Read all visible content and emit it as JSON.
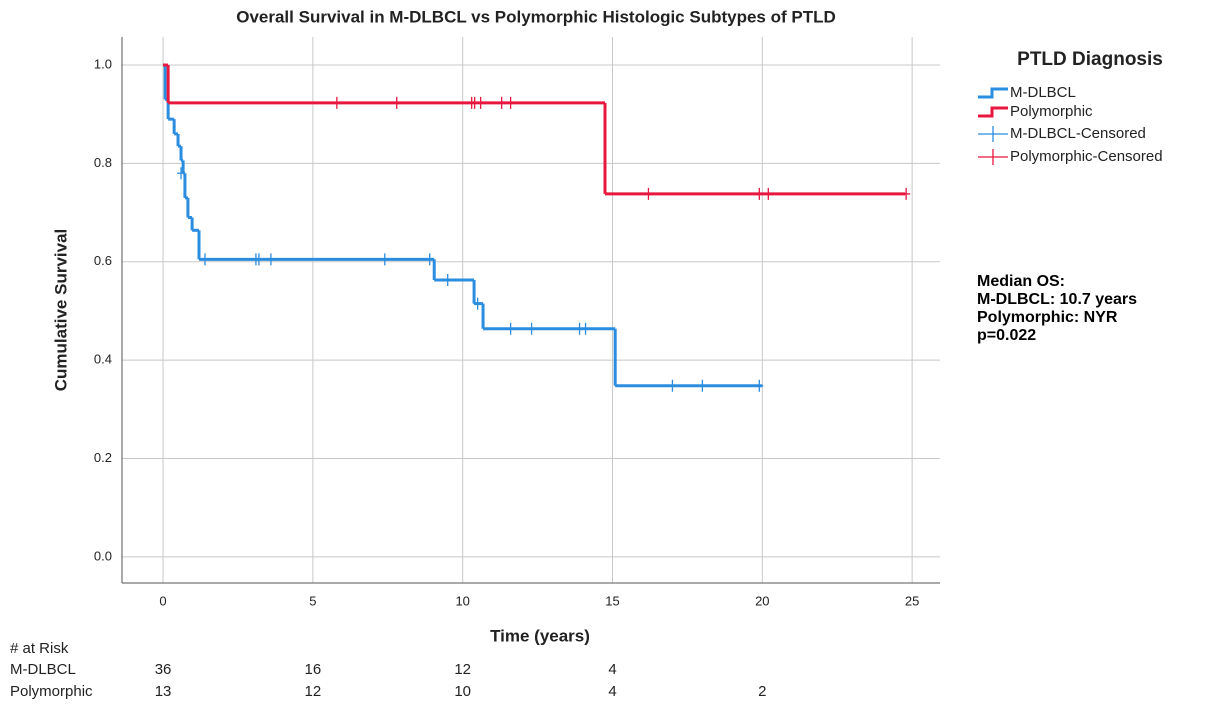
{
  "chart_data": {
    "type": "survival",
    "title": "Overall Survival in M-DLBCL vs Polymorphic Histologic Subtypes of PTLD",
    "x_label": "Time (years)",
    "y_label": "Cumulative Survival",
    "xlim": [
      -1.37,
      25.93
    ],
    "ylim": [
      -0.053,
      1.057
    ],
    "xticks": [
      0,
      5,
      10,
      15,
      20,
      25
    ],
    "yticks": [
      {
        "value": 0,
        "label": "0.0"
      },
      {
        "value": 0.2,
        "label": "0.2"
      },
      {
        "value": 0.4,
        "label": "0.4"
      },
      {
        "value": 0.6,
        "label": "0.6"
      },
      {
        "value": 0.8,
        "label": "0.8"
      },
      {
        "value": 1,
        "label": "1.0"
      }
    ],
    "grid": true,
    "legend": {
      "title": "PTLD Diagnosis",
      "entries": [
        "M-DLBCL",
        "Polymorphic",
        "M-DLBCL-Censored",
        "Polymorphic-Censored"
      ]
    },
    "series": [
      {
        "name": "M-DLBCL",
        "color": "#2a8de0",
        "x": [
          0,
          0.07,
          0.17,
          0.37,
          0.5,
          0.6,
          0.67,
          0.73,
          0.83,
          0.97,
          1.2,
          9.05,
          10.38,
          10.68,
          15.09,
          20.0
        ],
        "values": [
          1.0,
          0.93,
          0.89,
          0.86,
          0.835,
          0.806,
          0.78,
          0.73,
          0.69,
          0.664,
          0.605,
          0.563,
          0.515,
          0.464,
          0.348,
          0.348
        ],
        "censored": {
          "x": [
            0.6,
            1.4,
            3.1,
            3.2,
            3.6,
            7.4,
            8.9,
            9.5,
            10.5,
            11.6,
            12.3,
            13.9,
            14.1,
            17.0,
            18.0,
            19.9
          ],
          "values": [
            0.78,
            0.605,
            0.605,
            0.605,
            0.605,
            0.605,
            0.605,
            0.563,
            0.515,
            0.464,
            0.464,
            0.464,
            0.464,
            0.348,
            0.348,
            0.348
          ]
        }
      },
      {
        "name": "Polymorphic",
        "color": "#e8173f",
        "x": [
          0,
          0.17,
          14.75,
          24.77
        ],
        "values": [
          1.0,
          0.923,
          0.738,
          0.738
        ],
        "censored": {
          "x": [
            5.8,
            7.8,
            10.3,
            10.4,
            10.6,
            11.3,
            11.6,
            16.2,
            19.9,
            20.2,
            24.8
          ],
          "values": [
            0.923,
            0.923,
            0.923,
            0.923,
            0.923,
            0.923,
            0.923,
            0.738,
            0.738,
            0.738,
            0.738
          ]
        }
      }
    ],
    "annotation": [
      "Median OS:",
      "M-DLBCL: 10.7 years",
      "Polymorphic: NYR",
      "p=0.022"
    ],
    "at_risk": {
      "title": "# at Risk",
      "rows": [
        {
          "label": "M-DLBCL",
          "values": [
            36,
            16,
            12,
            4
          ]
        },
        {
          "label": "Polymorphic",
          "values": [
            13,
            12,
            10,
            4,
            2
          ]
        }
      ]
    }
  }
}
